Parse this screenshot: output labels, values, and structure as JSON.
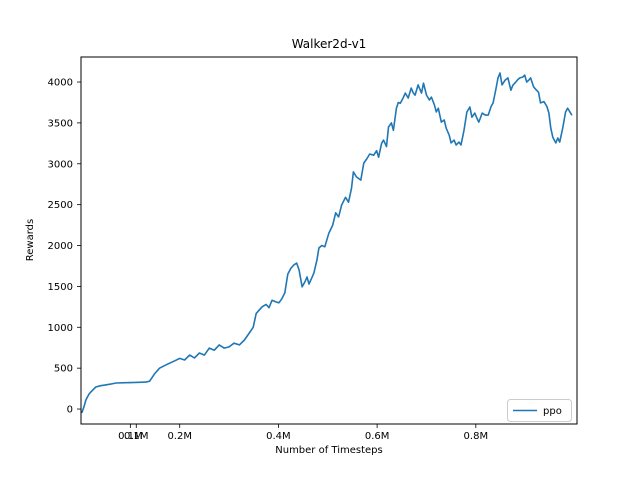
{
  "chart_data": {
    "type": "line",
    "title": "Walker2d-v1",
    "xlabel": "Number of Timesteps",
    "ylabel": "Rewards",
    "x_unit": "millions of timesteps",
    "xlim": [
      0,
      1.005
    ],
    "ylim": [
      -183,
      4306
    ],
    "grid": false,
    "x_ticks": [
      {
        "value": 0.1,
        "label": "0.1M"
      },
      {
        "value": 0.112,
        "label": "0.1M"
      },
      {
        "value": 0.2,
        "label": "0.2M"
      },
      {
        "value": 0.4,
        "label": "0.4M"
      },
      {
        "value": 0.6,
        "label": "0.6M"
      },
      {
        "value": 0.8,
        "label": "0.8M"
      }
    ],
    "y_ticks": [
      0,
      500,
      1000,
      1500,
      2000,
      2500,
      3000,
      3500,
      4000
    ],
    "legend": {
      "position": "lower right",
      "entries": [
        {
          "label": "ppo",
          "color": "#1f77b4"
        }
      ],
      "border_color": "#cccccc",
      "background": "#ffffff"
    },
    "series": [
      {
        "name": "ppo",
        "color": "#1f77b4",
        "x": [
          0.002,
          0.006,
          0.01,
          0.016,
          0.02,
          0.03,
          0.04,
          0.05,
          0.06,
          0.071,
          0.091,
          0.111,
          0.131,
          0.139,
          0.149,
          0.159,
          0.169,
          0.179,
          0.19,
          0.2,
          0.21,
          0.22,
          0.23,
          0.24,
          0.25,
          0.26,
          0.27,
          0.28,
          0.29,
          0.3,
          0.31,
          0.321,
          0.331,
          0.341,
          0.349,
          0.355,
          0.361,
          0.367,
          0.375,
          0.381,
          0.387,
          0.395,
          0.401,
          0.407,
          0.413,
          0.419,
          0.425,
          0.431,
          0.437,
          0.442,
          0.448,
          0.454,
          0.458,
          0.462,
          0.468,
          0.472,
          0.478,
          0.482,
          0.488,
          0.494,
          0.502,
          0.51,
          0.516,
          0.522,
          0.528,
          0.536,
          0.542,
          0.548,
          0.552,
          0.558,
          0.567,
          0.573,
          0.579,
          0.585,
          0.593,
          0.599,
          0.603,
          0.609,
          0.613,
          0.619,
          0.623,
          0.629,
          0.633,
          0.639,
          0.643,
          0.647,
          0.653,
          0.657,
          0.663,
          0.669,
          0.673,
          0.677,
          0.683,
          0.69,
          0.694,
          0.7,
          0.706,
          0.71,
          0.716,
          0.72,
          0.724,
          0.73,
          0.736,
          0.74,
          0.746,
          0.75,
          0.756,
          0.76,
          0.766,
          0.77,
          0.776,
          0.782,
          0.788,
          0.792,
          0.798,
          0.802,
          0.806,
          0.813,
          0.819,
          0.825,
          0.831,
          0.835,
          0.841,
          0.845,
          0.849,
          0.853,
          0.859,
          0.865,
          0.871,
          0.875,
          0.881,
          0.885,
          0.889,
          0.895,
          0.899,
          0.903,
          0.907,
          0.911,
          0.917,
          0.923,
          0.927,
          0.931,
          0.938,
          0.944,
          0.948,
          0.952,
          0.956,
          0.962,
          0.966,
          0.97,
          0.976,
          0.982,
          0.986,
          0.99,
          0.994
        ],
        "y": [
          -40,
          30,
          110,
          180,
          210,
          270,
          285,
          295,
          305,
          318,
          322,
          326,
          330,
          340,
          430,
          500,
          530,
          560,
          590,
          620,
          600,
          660,
          625,
          685,
          660,
          745,
          720,
          785,
          745,
          760,
          805,
          785,
          845,
          930,
          1000,
          1170,
          1210,
          1250,
          1280,
          1240,
          1330,
          1310,
          1300,
          1350,
          1420,
          1650,
          1720,
          1760,
          1785,
          1700,
          1495,
          1560,
          1615,
          1530,
          1610,
          1665,
          1820,
          1970,
          2000,
          1985,
          2150,
          2250,
          2400,
          2350,
          2495,
          2590,
          2530,
          2700,
          2900,
          2840,
          2800,
          3010,
          3060,
          3120,
          3105,
          3160,
          3080,
          3250,
          3290,
          3210,
          3450,
          3500,
          3410,
          3680,
          3750,
          3740,
          3810,
          3865,
          3805,
          3925,
          3870,
          3840,
          3965,
          3865,
          3985,
          3840,
          3780,
          3815,
          3720,
          3635,
          3680,
          3510,
          3535,
          3435,
          3350,
          3255,
          3290,
          3230,
          3265,
          3230,
          3410,
          3635,
          3695,
          3570,
          3620,
          3560,
          3510,
          3620,
          3595,
          3595,
          3700,
          3745,
          3925,
          4050,
          4110,
          3965,
          4020,
          4050,
          3900,
          3960,
          4000,
          4030,
          4050,
          4060,
          4085,
          4000,
          4020,
          4050,
          3940,
          3900,
          3875,
          3745,
          3760,
          3700,
          3620,
          3435,
          3325,
          3255,
          3315,
          3265,
          3435,
          3635,
          3680,
          3640,
          3600
        ]
      }
    ]
  }
}
